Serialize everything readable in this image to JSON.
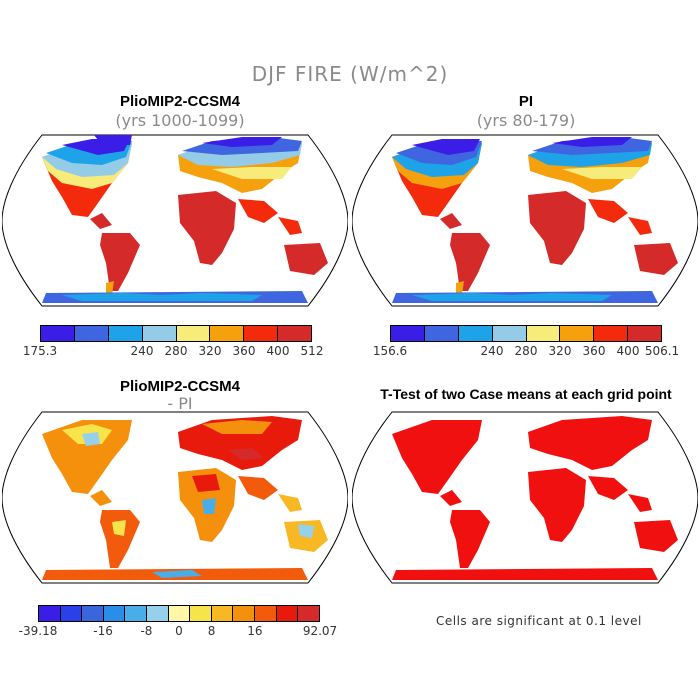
{
  "title": "DJF FIRE (W/m^2)",
  "panels": [
    {
      "title": "PlioMIP2-CCSM4",
      "subtitle": "(yrs 1000-1099)"
    },
    {
      "title": "PI",
      "subtitle": "(yrs 80-179)"
    },
    {
      "title": "PlioMIP2-CCSM4",
      "subtitle": "- PI"
    },
    {
      "title": "T-Test of two Case means at each grid point",
      "subtitle": ""
    }
  ],
  "colorbars": {
    "abs1": {
      "colors": [
        "#3a1ee8",
        "#3f66e0",
        "#1fa3e8",
        "#94cce8",
        "#f7ec7a",
        "#f5a00d",
        "#f32a0c",
        "#d42a2a"
      ],
      "labels": [
        "175.3",
        "240",
        "280",
        "320",
        "360",
        "400",
        "512"
      ]
    },
    "abs2": {
      "colors": [
        "#3a1ee8",
        "#3f66e0",
        "#1fa3e8",
        "#94cce8",
        "#f7ec7a",
        "#f5a00d",
        "#f32a0c",
        "#d42a2a"
      ],
      "labels": [
        "156.6",
        "240",
        "280",
        "320",
        "360",
        "400",
        "506.1"
      ]
    },
    "diff": {
      "colors": [
        "#3a1ee8",
        "#2a40e8",
        "#3a66dc",
        "#2a8ee8",
        "#49aee8",
        "#96d0ec",
        "#fff6a8",
        "#f7e44a",
        "#f7b824",
        "#f5900c",
        "#f25a0c",
        "#e81a0c",
        "#d42a2a"
      ],
      "labels": [
        "-39.18",
        "-16",
        "-8",
        "0",
        "8",
        "16",
        "92.07"
      ]
    }
  },
  "note": "Cells are significant at 0.1 level"
}
